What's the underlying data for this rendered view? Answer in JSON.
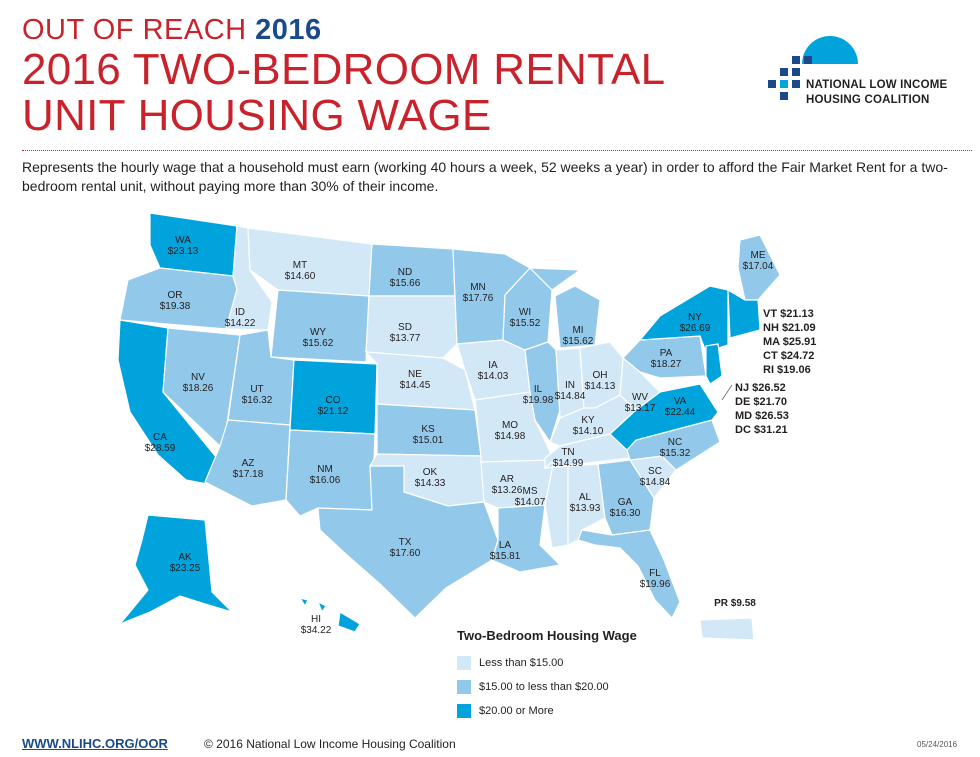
{
  "header": {
    "kicker": "OUT OF REACH",
    "kicker_year": "2016",
    "title_line1": "2016 TWO-BEDROOM RENTAL",
    "title_line2": "UNIT HOUSING WAGE",
    "description": "Represents the hourly wage that a household must earn (working 40 hours a week, 52 weeks a year) in order to afford the Fair Market Rent for a two-bedroom rental unit, without paying more than 30% of their income."
  },
  "logo": {
    "line1": "NATIONAL LOW INCOME",
    "line2": "HOUSING COALITION"
  },
  "colors": {
    "low": "#d3e8f6",
    "mid": "#92c8ea",
    "high": "#00a3dc",
    "title_red": "#c8232c",
    "brand_blue": "#1a4a8a"
  },
  "states": [
    {
      "abbr": "WA",
      "wage": "$23.13",
      "tier": "high"
    },
    {
      "abbr": "OR",
      "wage": "$19.38",
      "tier": "mid"
    },
    {
      "abbr": "CA",
      "wage": "$28.59",
      "tier": "high"
    },
    {
      "abbr": "ID",
      "wage": "$14.22",
      "tier": "low"
    },
    {
      "abbr": "NV",
      "wage": "$18.26",
      "tier": "mid"
    },
    {
      "abbr": "MT",
      "wage": "$14.60",
      "tier": "low"
    },
    {
      "abbr": "WY",
      "wage": "$15.62",
      "tier": "mid"
    },
    {
      "abbr": "UT",
      "wage": "$16.32",
      "tier": "mid"
    },
    {
      "abbr": "AZ",
      "wage": "$17.18",
      "tier": "mid"
    },
    {
      "abbr": "CO",
      "wage": "$21.12",
      "tier": "high"
    },
    {
      "abbr": "NM",
      "wage": "$16.06",
      "tier": "mid"
    },
    {
      "abbr": "ND",
      "wage": "$15.66",
      "tier": "mid"
    },
    {
      "abbr": "SD",
      "wage": "$13.77",
      "tier": "low"
    },
    {
      "abbr": "NE",
      "wage": "$14.45",
      "tier": "low"
    },
    {
      "abbr": "KS",
      "wage": "$15.01",
      "tier": "mid"
    },
    {
      "abbr": "OK",
      "wage": "$14.33",
      "tier": "low"
    },
    {
      "abbr": "TX",
      "wage": "$17.60",
      "tier": "mid"
    },
    {
      "abbr": "MN",
      "wage": "$17.76",
      "tier": "mid"
    },
    {
      "abbr": "IA",
      "wage": "$14.03",
      "tier": "low"
    },
    {
      "abbr": "MO",
      "wage": "$14.98",
      "tier": "low"
    },
    {
      "abbr": "AR",
      "wage": "$13.26",
      "tier": "low"
    },
    {
      "abbr": "LA",
      "wage": "$15.81",
      "tier": "mid"
    },
    {
      "abbr": "WI",
      "wage": "$15.52",
      "tier": "mid"
    },
    {
      "abbr": "IL",
      "wage": "$19.98",
      "tier": "mid"
    },
    {
      "abbr": "MI",
      "wage": "$15.62",
      "tier": "mid"
    },
    {
      "abbr": "IN",
      "wage": "$14.84",
      "tier": "low"
    },
    {
      "abbr": "OH",
      "wage": "$14.13",
      "tier": "low"
    },
    {
      "abbr": "KY",
      "wage": "$14.10",
      "tier": "low"
    },
    {
      "abbr": "TN",
      "wage": "$14.99",
      "tier": "low"
    },
    {
      "abbr": "MS",
      "wage": "$14.07",
      "tier": "low"
    },
    {
      "abbr": "AL",
      "wage": "$13.93",
      "tier": "low"
    },
    {
      "abbr": "GA",
      "wage": "$16.30",
      "tier": "mid"
    },
    {
      "abbr": "FL",
      "wage": "$19.96",
      "tier": "mid"
    },
    {
      "abbr": "SC",
      "wage": "$14.84",
      "tier": "low"
    },
    {
      "abbr": "NC",
      "wage": "$15.32",
      "tier": "mid"
    },
    {
      "abbr": "VA",
      "wage": "$22.44",
      "tier": "high"
    },
    {
      "abbr": "WV",
      "wage": "$13.17",
      "tier": "low"
    },
    {
      "abbr": "PA",
      "wage": "$18.27",
      "tier": "mid"
    },
    {
      "abbr": "NY",
      "wage": "$26.69",
      "tier": "high"
    },
    {
      "abbr": "ME",
      "wage": "$17.04",
      "tier": "mid"
    },
    {
      "abbr": "AK",
      "wage": "$23.25",
      "tier": "high"
    },
    {
      "abbr": "HI",
      "wage": "$34.22",
      "tier": "high"
    },
    {
      "abbr": "PR",
      "wage": "$9.58",
      "tier": "low"
    }
  ],
  "callouts_ne": [
    "VT $21.13",
    "NH $21.09",
    "MA $25.91",
    "CT $24.72",
    "RI $19.06"
  ],
  "callouts_mid": [
    "NJ $26.52",
    "DE $21.70",
    "MD $26.53",
    "DC $31.21"
  ],
  "legend": {
    "title": "Two-Bedroom Housing Wage",
    "items": [
      {
        "label": "Less than $15.00",
        "tier": "low"
      },
      {
        "label": "$15.00 to less than $20.00",
        "tier": "mid"
      },
      {
        "label": "$20.00 or More",
        "tier": "high"
      }
    ]
  },
  "footer": {
    "url": "WWW.NLIHC.ORG/OOR",
    "copyright": "© 2016 National Low Income Housing Coalition",
    "date": "05/24/2016"
  }
}
